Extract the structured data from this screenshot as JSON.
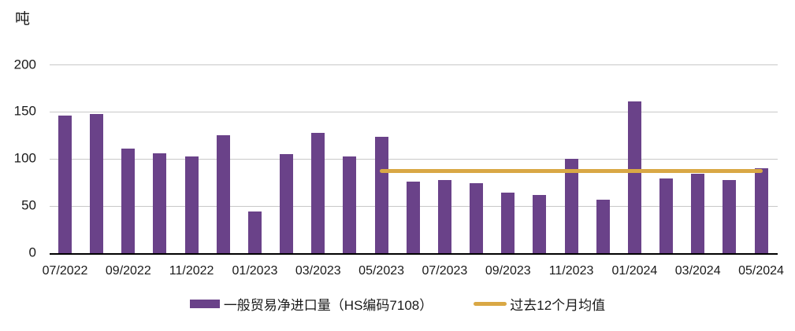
{
  "unit_label": "吨",
  "colors": {
    "bar": "#6A4289",
    "avg_line": "#D9A845",
    "gridline": "#C8C8C8",
    "axis": "#000000",
    "text": "#1A1A1A",
    "background": "#FFFFFF"
  },
  "legend": [
    {
      "label": "一般贸易净进口量（HS编码7108）",
      "swatch": "bar-swatch"
    },
    {
      "label": "过去12个月均值",
      "swatch": "line-swatch"
    }
  ],
  "chart_data": {
    "type": "bar",
    "title": "",
    "xlabel": "",
    "ylabel": "吨",
    "ylim": [
      0,
      200
    ],
    "yticks": [
      0,
      50,
      100,
      150,
      200
    ],
    "grid": "horizontal",
    "legend_position": "bottom",
    "categories": [
      "07/2022",
      "08/2022",
      "09/2022",
      "10/2022",
      "11/2022",
      "12/2022",
      "01/2023",
      "02/2023",
      "03/2023",
      "04/2023",
      "05/2023",
      "06/2023",
      "07/2023",
      "08/2023",
      "09/2023",
      "10/2023",
      "11/2023",
      "12/2023",
      "01/2024",
      "02/2024",
      "03/2024",
      "04/2024",
      "05/2024"
    ],
    "x_tick_every": 2,
    "x_tick_labels_shown": [
      "07/2022",
      "09/2022",
      "11/2022",
      "01/2023",
      "03/2023",
      "05/2023",
      "07/2023",
      "09/2023",
      "11/2023",
      "01/2024",
      "03/2024",
      "05/2024"
    ],
    "series": [
      {
        "name": "一般贸易净进口量（HS编码7108）",
        "type": "bar",
        "color": "#6A4289",
        "values": [
          146,
          148,
          111,
          106,
          103,
          125,
          44,
          105,
          128,
          103,
          124,
          76,
          78,
          74,
          64,
          62,
          100,
          57,
          161,
          79,
          84,
          78,
          90
        ]
      },
      {
        "name": "过去12个月均值",
        "type": "line",
        "color": "#D9A845",
        "value": 87,
        "from": "05/2023",
        "to": "05/2024"
      }
    ]
  }
}
